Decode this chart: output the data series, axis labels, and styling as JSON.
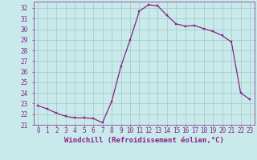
{
  "hours": [
    0,
    1,
    2,
    3,
    4,
    5,
    6,
    7,
    8,
    9,
    10,
    11,
    12,
    13,
    14,
    15,
    16,
    17,
    18,
    19,
    20,
    21,
    22,
    23
  ],
  "values": [
    22.8,
    22.5,
    22.1,
    21.8,
    21.65,
    21.65,
    21.6,
    21.2,
    23.2,
    26.5,
    29.0,
    31.7,
    32.3,
    32.2,
    31.3,
    30.5,
    30.3,
    30.35,
    30.05,
    29.8,
    29.4,
    28.8,
    24.0,
    23.4
  ],
  "line_color": "#882288",
  "marker": "s",
  "marker_size": 1.8,
  "bg_color": "#c8eaea",
  "grid_color": "#aacccc",
  "xlabel": "Windchill (Refroidissement éolien,°C)",
  "ylim": [
    21,
    32.6
  ],
  "xlim": [
    -0.5,
    23.5
  ],
  "yticks": [
    21,
    22,
    23,
    24,
    25,
    26,
    27,
    28,
    29,
    30,
    31,
    32
  ],
  "tick_fontsize": 5.5,
  "xlabel_fontsize": 6.5
}
